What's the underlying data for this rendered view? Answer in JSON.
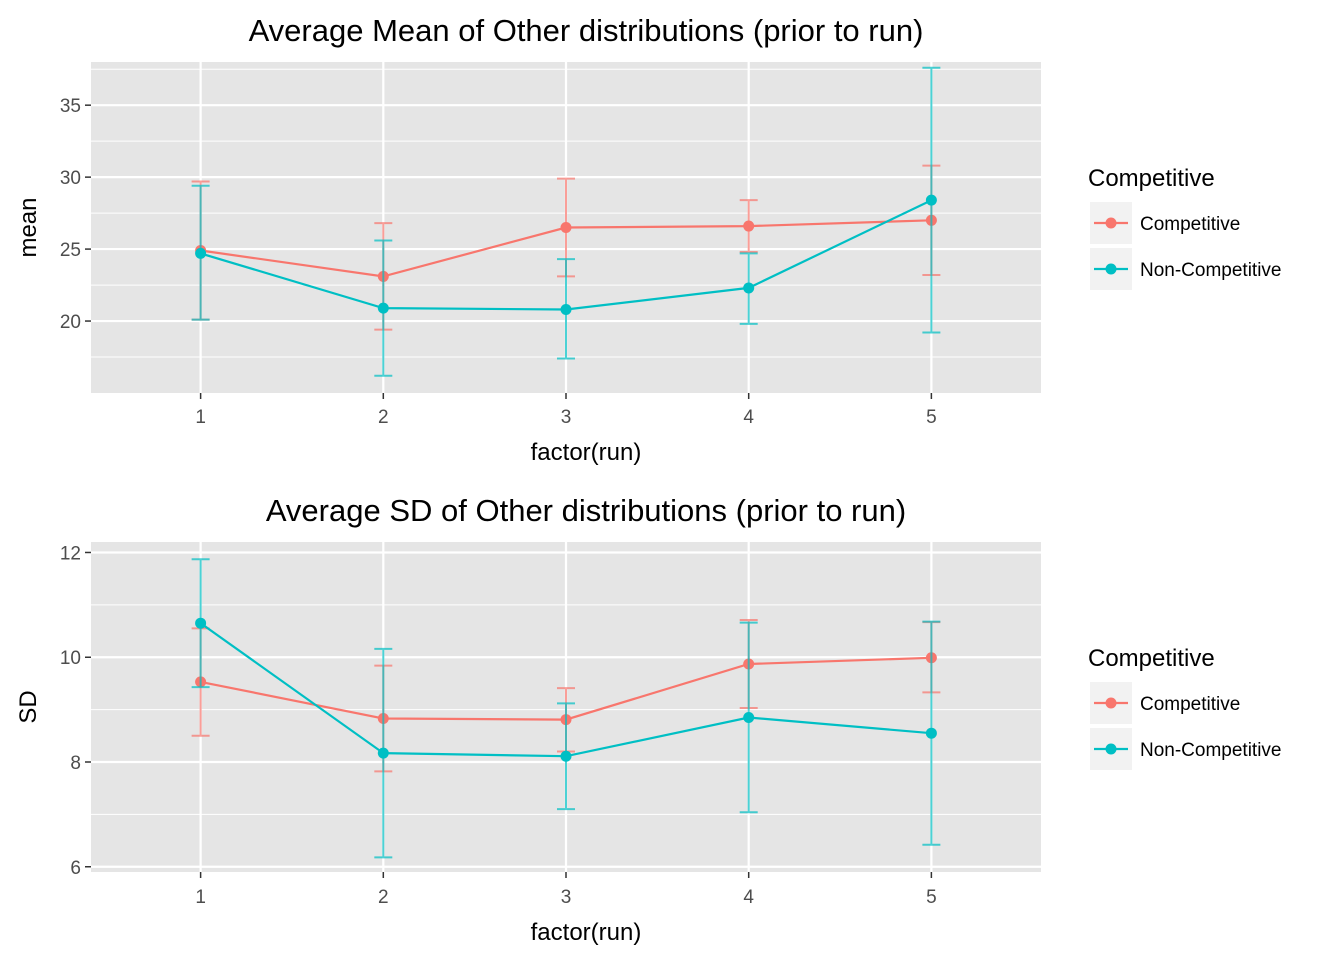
{
  "colors": {
    "panel_bg": "#e5e5e5",
    "grid": "#ffffff",
    "tick": "#333333",
    "legend_key_bg": "#f2f2f2"
  },
  "chart_data": [
    {
      "type": "line",
      "title": "Average Mean of Other distributions (prior to run)",
      "xlabel": "factor(run)",
      "ylabel": "mean",
      "categories": [
        "1",
        "2",
        "3",
        "4",
        "5"
      ],
      "ylim": [
        15,
        38
      ],
      "yticks": [
        20,
        25,
        30,
        35
      ],
      "grid": true,
      "error_bars": true,
      "legend": {
        "title": "Competitive",
        "placement": "right",
        "entries": [
          "Competitive",
          "Non-Competitive"
        ]
      },
      "series": [
        {
          "name": "Competitive",
          "color": "#f8766d",
          "values": [
            24.9,
            23.1,
            26.5,
            26.6,
            27.0
          ],
          "lower": [
            20.1,
            19.4,
            23.1,
            24.8,
            23.2
          ],
          "upper": [
            29.7,
            26.8,
            29.9,
            28.4,
            30.8
          ]
        },
        {
          "name": "Non-Competitive",
          "color": "#00bfc4",
          "values": [
            24.7,
            20.9,
            20.8,
            22.3,
            28.4
          ],
          "lower": [
            20.1,
            16.2,
            17.4,
            19.8,
            19.2
          ],
          "upper": [
            29.4,
            25.6,
            24.3,
            24.7,
            37.6
          ]
        }
      ]
    },
    {
      "type": "line",
      "title": "Average SD of Other distributions (prior to run)",
      "xlabel": "factor(run)",
      "ylabel": "SD",
      "categories": [
        "1",
        "2",
        "3",
        "4",
        "5"
      ],
      "ylim": [
        5.9,
        12.2
      ],
      "yticks": [
        6,
        8,
        10,
        12
      ],
      "grid": true,
      "error_bars": true,
      "legend": {
        "title": "Competitive",
        "placement": "right",
        "entries": [
          "Competitive",
          "Non-Competitive"
        ]
      },
      "series": [
        {
          "name": "Competitive",
          "color": "#f8766d",
          "values": [
            9.53,
            8.83,
            8.81,
            9.87,
            9.99
          ],
          "lower": [
            8.5,
            7.82,
            8.2,
            9.03,
            9.33
          ],
          "upper": [
            10.55,
            9.84,
            9.41,
            10.71,
            10.67
          ]
        },
        {
          "name": "Non-Competitive",
          "color": "#00bfc4",
          "values": [
            10.65,
            8.17,
            8.11,
            8.85,
            8.55
          ],
          "lower": [
            9.43,
            6.18,
            7.1,
            7.04,
            6.42
          ],
          "upper": [
            11.87,
            10.16,
            9.12,
            10.66,
            10.68
          ]
        }
      ]
    }
  ]
}
